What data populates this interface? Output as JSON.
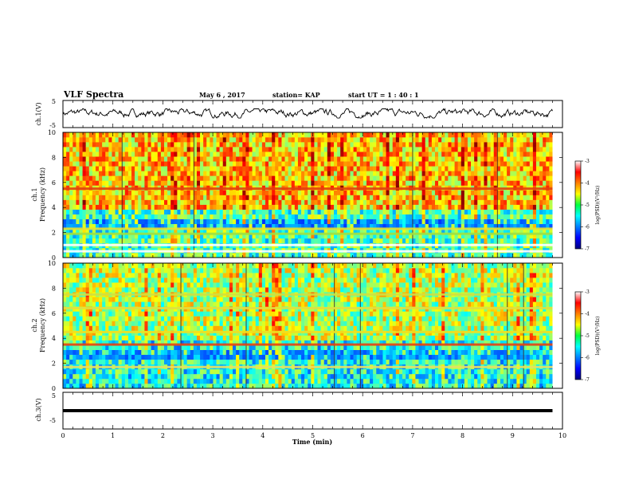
{
  "header": {
    "title": "VLF Spectra",
    "date": "May 6 , 2017",
    "station": "station= KAP",
    "start": "start UT = 1 : 40 : 1"
  },
  "chart_data": [
    {
      "type": "line",
      "panel": "ch1-waveform",
      "ylabel": "ch.1(V)",
      "ylim": [
        -5,
        5
      ],
      "yticks": [
        "5",
        "-5"
      ],
      "x_range_min": [
        0,
        9.8
      ],
      "trace_level": 0.3,
      "trace_variation": [
        -1.5,
        1.9
      ]
    },
    {
      "type": "heatmap",
      "panel": "ch1-spectrogram",
      "ylabel": "ch.1\nFrequency (kHz)",
      "ylim": [
        0,
        10
      ],
      "yticks": [
        "0",
        "2",
        "4",
        "6",
        "8",
        "10"
      ],
      "x_range_min": [
        0,
        9.8
      ],
      "colorbar": {
        "label": "log(PSD)(V²/Hz)",
        "range": [
          -7,
          -3
        ],
        "ticks": [
          "-3",
          "-4",
          "-5",
          "-6",
          "-7"
        ]
      },
      "bands": [
        {
          "freq_khz": 5.5,
          "level": -3.6,
          "color": "#e04010"
        },
        {
          "freq_khz": 2.3,
          "level": -4.7,
          "color": "#e8e030"
        },
        {
          "freq_khz": 1.9,
          "level": -4.9,
          "color": "#a0e040"
        },
        {
          "freq_khz": 1.0,
          "level": -4.6,
          "color": "#ffffff"
        },
        {
          "freq_khz": 0.5,
          "level": -4.8,
          "color": "#ffffff"
        }
      ],
      "low_freq_bands": [
        {
          "from_khz": 2.5,
          "to_khz": 3.2,
          "level": -6.3,
          "color": "#1020c0"
        }
      ],
      "upper_level": -4.3,
      "lower_level": -5.2
    },
    {
      "type": "heatmap",
      "panel": "ch2-spectrogram",
      "ylabel": "ch.2\nFrequency (kHz)",
      "ylim": [
        0,
        10
      ],
      "yticks": [
        "0",
        "2",
        "4",
        "6",
        "8",
        "10"
      ],
      "x_range_min": [
        0,
        9.8
      ],
      "colorbar": {
        "label": "log(PSD)(V²/Hz)",
        "range": [
          -7,
          -3
        ],
        "ticks": [
          "-3",
          "-4",
          "-5",
          "-6",
          "-7"
        ]
      },
      "bands": [
        {
          "freq_khz": 3.5,
          "level": -3.5,
          "color": "#e84010"
        },
        {
          "freq_khz": 4.5,
          "level": -4.4,
          "color": "#f0e020"
        },
        {
          "freq_khz": 6.4,
          "level": -4.6,
          "color": "#e0e040"
        },
        {
          "freq_khz": 7.5,
          "level": -4.7,
          "color": "#d0e040"
        },
        {
          "freq_khz": 1.7,
          "level": -4.8,
          "color": "#e8e060"
        }
      ],
      "low_freq_bands": [
        {
          "from_khz": 2.4,
          "to_khz": 3.0,
          "level": -6.2,
          "color": "#1a30d0"
        }
      ],
      "upper_level": -4.8,
      "lower_level": -5.4
    },
    {
      "type": "line",
      "panel": "ch3-waveform",
      "ylabel": "ch.3(V)",
      "ylim": [
        -5,
        5
      ],
      "yticks": [
        "5",
        "-5"
      ],
      "x_range_min": [
        0,
        9.8
      ],
      "trace_level": 0.0
    }
  ],
  "xaxis": {
    "label": "Time (min)",
    "range": [
      0,
      10
    ],
    "ticks": [
      "0",
      "1",
      "2",
      "3",
      "4",
      "5",
      "6",
      "7",
      "8",
      "9",
      "10"
    ]
  }
}
